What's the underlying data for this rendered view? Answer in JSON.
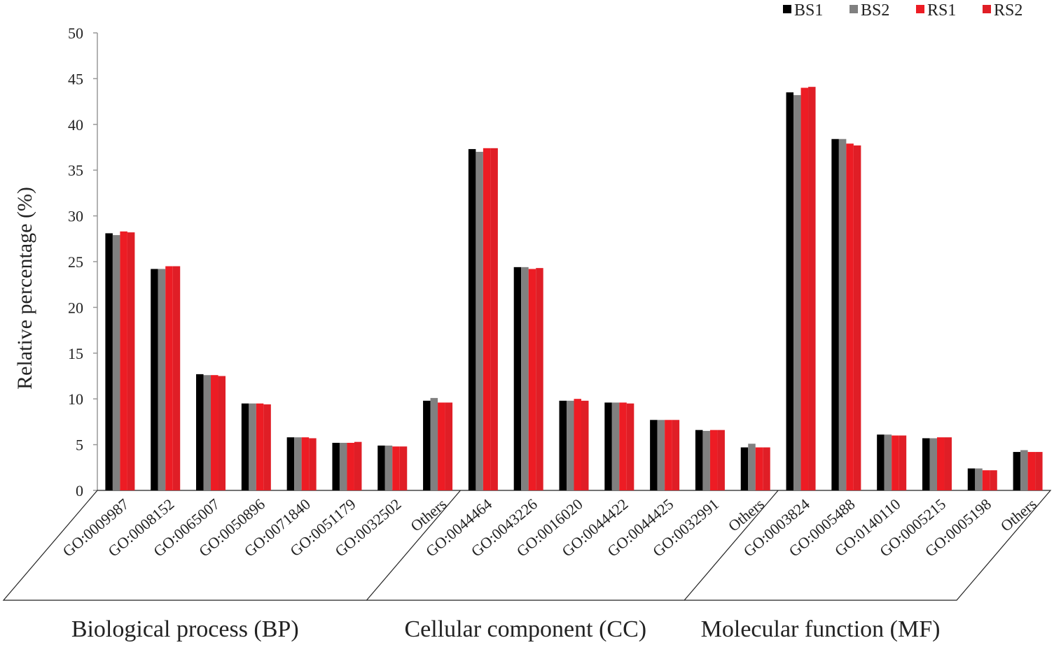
{
  "chart_data": {
    "type": "bar",
    "title": "",
    "xlabel": "",
    "ylabel": "Relative percentage (%)",
    "ylim": [
      0,
      50
    ],
    "yticks": [
      "0",
      "5",
      "10",
      "15",
      "20",
      "25",
      "30",
      "35",
      "40",
      "45",
      "50"
    ],
    "grid": false,
    "legend_position": "top-right",
    "colors": {
      "BS1": "#000000",
      "BS2": "#808080",
      "RS1": "#ed1c24",
      "RS2": "#e01e26"
    },
    "groups": [
      {
        "label": "Biological process (BP)",
        "categories": [
          "GO:0009987",
          "GO:0008152",
          "GO:0065007",
          "GO:0050896",
          "GO:0071840",
          "GO:0051179",
          "GO:0032502",
          "Others"
        ]
      },
      {
        "label": "Cellular component (CC)",
        "categories": [
          "GO:0044464",
          "GO:0043226",
          "GO:0016020",
          "GO:0044422",
          "GO:0044425",
          "GO:0032991",
          "Others"
        ]
      },
      {
        "label": "Molecular function (MF)",
        "categories": [
          "GO:0003824",
          "GO:0005488",
          "GO:0140110",
          "GO:0005215",
          "GO:0005198",
          "Others"
        ]
      }
    ],
    "series": [
      {
        "name": "BS1",
        "values": [
          28.1,
          24.2,
          12.7,
          9.5,
          5.8,
          5.2,
          4.9,
          9.8,
          37.3,
          24.4,
          9.8,
          9.6,
          7.7,
          6.6,
          4.7,
          43.5,
          38.4,
          6.1,
          5.7,
          2.4,
          4.2
        ]
      },
      {
        "name": "BS2",
        "values": [
          27.9,
          24.2,
          12.6,
          9.5,
          5.8,
          5.2,
          4.9,
          10.1,
          37.0,
          24.4,
          9.8,
          9.6,
          7.7,
          6.5,
          5.1,
          43.2,
          38.4,
          6.1,
          5.7,
          2.4,
          4.4
        ]
      },
      {
        "name": "RS1",
        "values": [
          28.3,
          24.5,
          12.6,
          9.5,
          5.8,
          5.2,
          4.8,
          9.6,
          37.4,
          24.2,
          10.0,
          9.6,
          7.7,
          6.6,
          4.7,
          44.0,
          37.9,
          6.0,
          5.8,
          2.2,
          4.2
        ]
      },
      {
        "name": "RS2",
        "values": [
          28.2,
          24.5,
          12.5,
          9.4,
          5.7,
          5.3,
          4.8,
          9.6,
          37.4,
          24.3,
          9.8,
          9.5,
          7.7,
          6.6,
          4.7,
          44.1,
          37.7,
          6.0,
          5.8,
          2.2,
          4.2
        ]
      }
    ]
  }
}
